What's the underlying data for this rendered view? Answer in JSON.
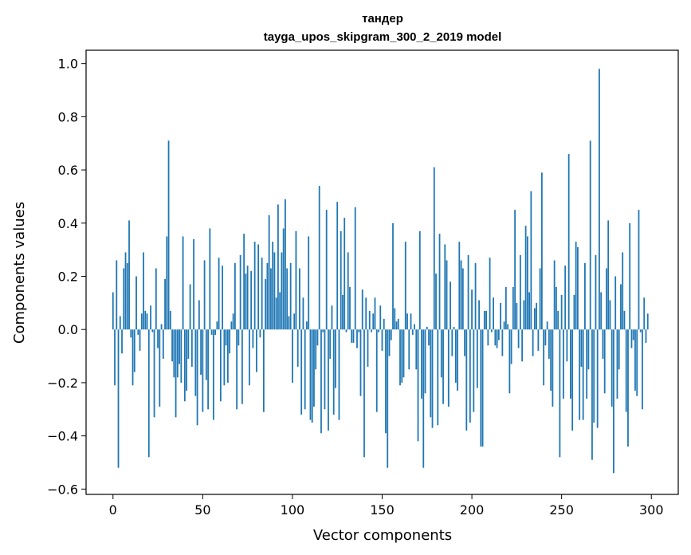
{
  "chart_data": {
    "type": "bar",
    "title": "тандер",
    "subtitle": "tayga_upos_skipgram_300_2_2019 model",
    "xlabel": "Vector components",
    "ylabel": "Components values",
    "xlim": [
      -15,
      315
    ],
    "ylim": [
      -0.62,
      1.05
    ],
    "x_ticks": [
      0,
      50,
      100,
      150,
      200,
      250,
      300
    ],
    "x_tick_labels": [
      "0",
      "50",
      "100",
      "150",
      "200",
      "250",
      "300"
    ],
    "y_ticks": [
      -0.6,
      -0.4,
      -0.2,
      0.0,
      0.2,
      0.4,
      0.6,
      0.8,
      1.0
    ],
    "y_tick_labels": [
      "−0.6",
      "−0.4",
      "−0.2",
      "0.0",
      "0.2",
      "0.4",
      "0.6",
      "0.8",
      "1.0"
    ],
    "bar_color": "#1f77b4",
    "grid": false,
    "values": [
      0.14,
      -0.21,
      0.26,
      -0.52,
      0.05,
      -0.09,
      0.23,
      0.29,
      0.25,
      0.41,
      -0.03,
      -0.21,
      -0.16,
      0.2,
      -0.02,
      -0.08,
      0.06,
      0.29,
      0.07,
      0.06,
      -0.48,
      0.09,
      -0.01,
      -0.33,
      0.23,
      -0.07,
      -0.29,
      0.02,
      -0.11,
      0.19,
      0.35,
      0.71,
      0.07,
      -0.12,
      -0.18,
      -0.33,
      -0.18,
      -0.13,
      -0.2,
      0.35,
      -0.27,
      -0.23,
      -0.11,
      0.17,
      -0.14,
      0.34,
      -0.25,
      -0.36,
      0.11,
      -0.17,
      -0.31,
      0.26,
      -0.19,
      -0.3,
      0.38,
      -0.02,
      -0.34,
      -0.02,
      0.03,
      0.27,
      -0.27,
      0.24,
      -0.21,
      -0.06,
      -0.2,
      -0.09,
      0.03,
      0.06,
      0.25,
      -0.3,
      -0.06,
      0.28,
      -0.28,
      0.36,
      0.21,
      0.24,
      -0.21,
      0.22,
      -0.07,
      0.33,
      -0.16,
      0.32,
      -0.03,
      0.27,
      -0.31,
      0.19,
      0.25,
      0.43,
      0.23,
      0.33,
      0.29,
      0.12,
      0.47,
      0.14,
      0.29,
      0.38,
      0.49,
      0.23,
      0.05,
      0.25,
      -0.2,
      0.06,
      0.37,
      -0.14,
      0.23,
      -0.32,
      0.12,
      -0.3,
      0.03,
      0.35,
      -0.34,
      -0.35,
      -0.29,
      -0.15,
      -0.06,
      0.54,
      -0.39,
      -0.01,
      -0.3,
      0.45,
      -0.38,
      -0.11,
      0.09,
      -0.32,
      -0.22,
      0.48,
      -0.34,
      0.37,
      0.13,
      0.42,
      -0.01,
      0.29,
      0.16,
      -0.05,
      -0.05,
      0.46,
      -0.07,
      -0.01,
      -0.25,
      0.15,
      -0.48,
      0.12,
      -0.14,
      0.07,
      -0.01,
      0.06,
      0.12,
      -0.31,
      -0.01,
      0.09,
      -0.08,
      0.04,
      -0.39,
      -0.52,
      -0.1,
      -0.04,
      0.4,
      0.08,
      0.03,
      0.04,
      -0.21,
      -0.2,
      -0.18,
      0.33,
      0.06,
      -0.15,
      0.06,
      -0.02,
      0.02,
      -0.15,
      -0.42,
      0.37,
      -0.26,
      -0.52,
      -0.24,
      0.01,
      -0.06,
      -0.33,
      -0.37,
      0.61,
      0.21,
      -0.36,
      0.36,
      -0.18,
      -0.28,
      0.32,
      0.26,
      -0.29,
      0.18,
      -0.1,
      0.01,
      -0.2,
      -0.23,
      0.33,
      0.26,
      0.23,
      -0.1,
      -0.38,
      0.28,
      -0.35,
      0.15,
      -0.31,
      0.25,
      -0.22,
      0.11,
      -0.44,
      -0.44,
      0.07,
      0.07,
      -0.06,
      0.27,
      -0.01,
      0.12,
      -0.06,
      -0.07,
      -0.04,
      0.1,
      -0.1,
      0.03,
      0.16,
      0.02,
      -0.24,
      -0.13,
      0.16,
      0.45,
      0.1,
      -0.07,
      0.28,
      -0.12,
      0.11,
      0.39,
      0.35,
      0.14,
      0.52,
      -0.1,
      0.08,
      0.1,
      -0.08,
      0.23,
      0.59,
      -0.21,
      -0.06,
      0.03,
      -0.11,
      -0.23,
      -0.29,
      0.26,
      0.16,
      0.07,
      -0.48,
      0.13,
      -0.26,
      0.24,
      -0.12,
      0.66,
      -0.26,
      -0.38,
      0.13,
      0.33,
      0.31,
      -0.34,
      -0.14,
      -0.34,
      0.25,
      -0.26,
      -0.15,
      0.71,
      -0.49,
      -0.35,
      0.28,
      -0.37,
      0.98,
      0.14,
      -0.11,
      -0.24,
      0.23,
      0.41,
      0.11,
      -0.29,
      -0.54,
      0.2,
      -0.26,
      -0.15,
      0.17,
      0.29,
      0.07,
      -0.31,
      -0.44,
      0.4,
      -0.07,
      -0.04,
      -0.23,
      -0.25,
      0.45,
      -0.01,
      -0.3,
      0.12,
      -0.05,
      0.06
    ]
  }
}
